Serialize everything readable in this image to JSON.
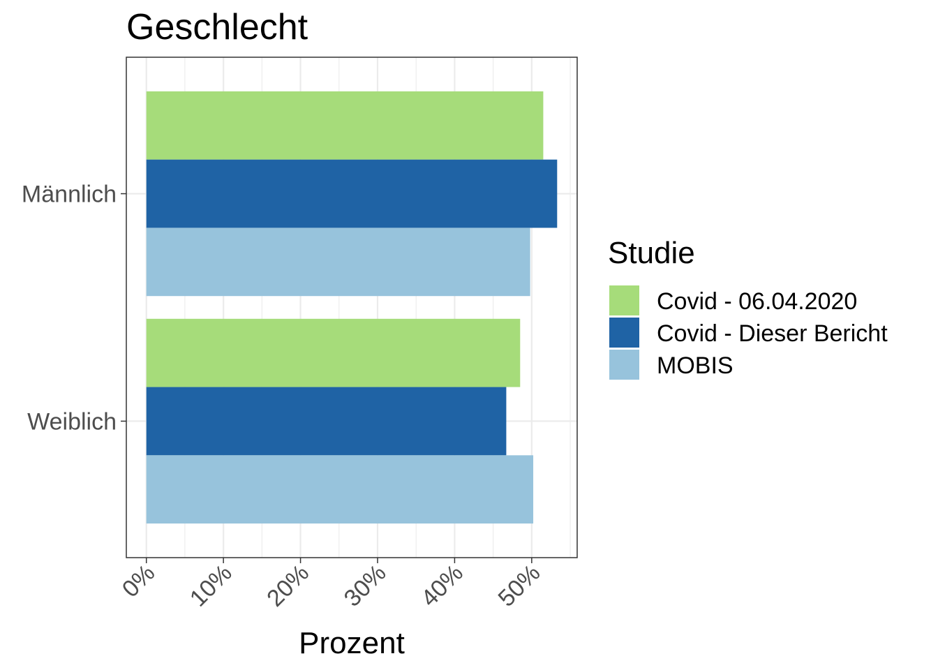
{
  "chart_data": {
    "type": "bar",
    "orientation": "horizontal",
    "title": "Geschlecht",
    "xlabel": "Prozent",
    "ylabel": "",
    "categories": [
      "Weiblich",
      "Männlich"
    ],
    "series": [
      {
        "name": "Covid - 06.04.2020",
        "color": "#a6dc7a",
        "values": [
          48.5,
          51.5
        ]
      },
      {
        "name": "Covid - Dieser Bericht",
        "color": "#1f63a5",
        "values": [
          46.7,
          53.3
        ]
      },
      {
        "name": "MOBIS",
        "color": "#97c3dc",
        "values": [
          50.2,
          49.8
        ]
      }
    ],
    "x_ticks": [
      "0%",
      "10%",
      "20%",
      "30%",
      "40%",
      "50%"
    ],
    "xlim": [
      -2.6,
      55.9
    ],
    "grid": true,
    "legend": {
      "title": "Studie",
      "position": "right"
    }
  }
}
